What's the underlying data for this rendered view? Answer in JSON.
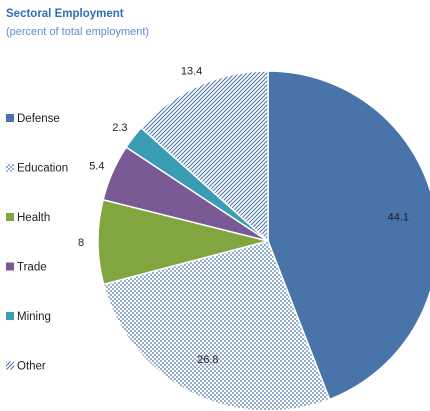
{
  "chart_data": {
    "type": "pie",
    "title": "Sectoral Employment",
    "subtitle": "(percent of total employment)",
    "categories": [
      "Defense",
      "Education",
      "Health",
      "Trade",
      "Mining",
      "Other"
    ],
    "values": [
      44.1,
      26.8,
      8,
      5.4,
      2.3,
      13.4
    ],
    "value_labels": [
      "44.1",
      "26.8",
      "8",
      "5.4",
      "2.3",
      "13.4"
    ],
    "colors": [
      "#4874aa",
      "#4874aa",
      "#82a63f",
      "#7a5a94",
      "#3a9db3",
      "#4874aa"
    ],
    "patterns": [
      "solid",
      "dots",
      "solid",
      "solid",
      "solid",
      "diagonal"
    ],
    "legend_position": "left",
    "start_angle": "12 o'clock",
    "direction": "clockwise"
  }
}
